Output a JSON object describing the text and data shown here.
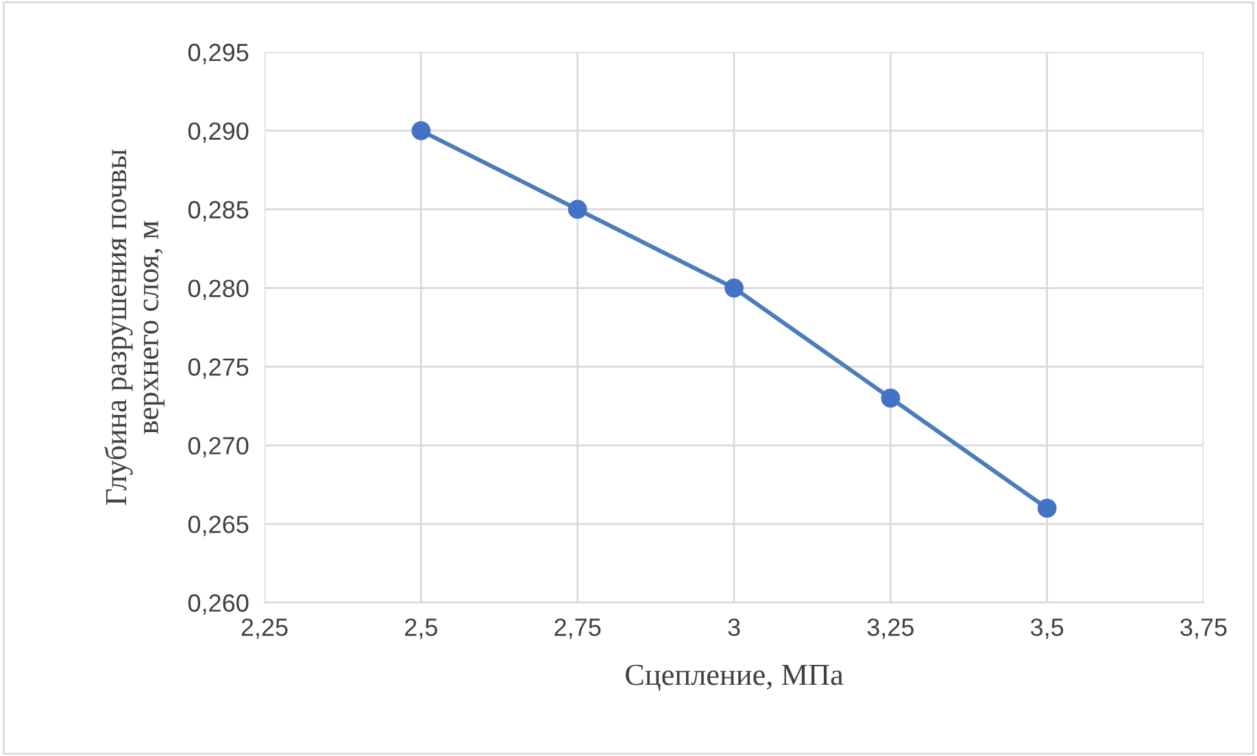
{
  "chart_data": {
    "type": "line",
    "xlabel": "Сцепление, МПа",
    "ylabel": "Глубина разрушения почвы\nверхнего слоя, м",
    "x": [
      2.5,
      2.75,
      3,
      3.25,
      3.5
    ],
    "series": [
      {
        "color": "#4a7ebb",
        "values": [
          0.29,
          0.285,
          0.28,
          0.273,
          0.266
        ]
      }
    ],
    "xlim": [
      2.25,
      3.75
    ],
    "xticks": [
      {
        "value": 2.25,
        "label": "2,25"
      },
      {
        "value": 2.5,
        "label": "2,5"
      },
      {
        "value": 2.75,
        "label": "2,75"
      },
      {
        "value": 3,
        "label": "3"
      },
      {
        "value": 3.25,
        "label": "3,25"
      },
      {
        "value": 3.5,
        "label": "3,5"
      },
      {
        "value": 3.75,
        "label": "3,75"
      }
    ],
    "ylim": [
      0.26,
      0.295
    ],
    "yticks": [
      {
        "value": 0.26,
        "label": "0,260"
      },
      {
        "value": 0.265,
        "label": "0,265"
      },
      {
        "value": 0.27,
        "label": "0,270"
      },
      {
        "value": 0.275,
        "label": "0,275"
      },
      {
        "value": 0.28,
        "label": "0,280"
      },
      {
        "value": 0.285,
        "label": "0,285"
      },
      {
        "value": 0.29,
        "label": "0,290"
      },
      {
        "value": 0.295,
        "label": "0,295"
      }
    ],
    "grid": true,
    "marker": "circle",
    "line_style": "solid"
  }
}
